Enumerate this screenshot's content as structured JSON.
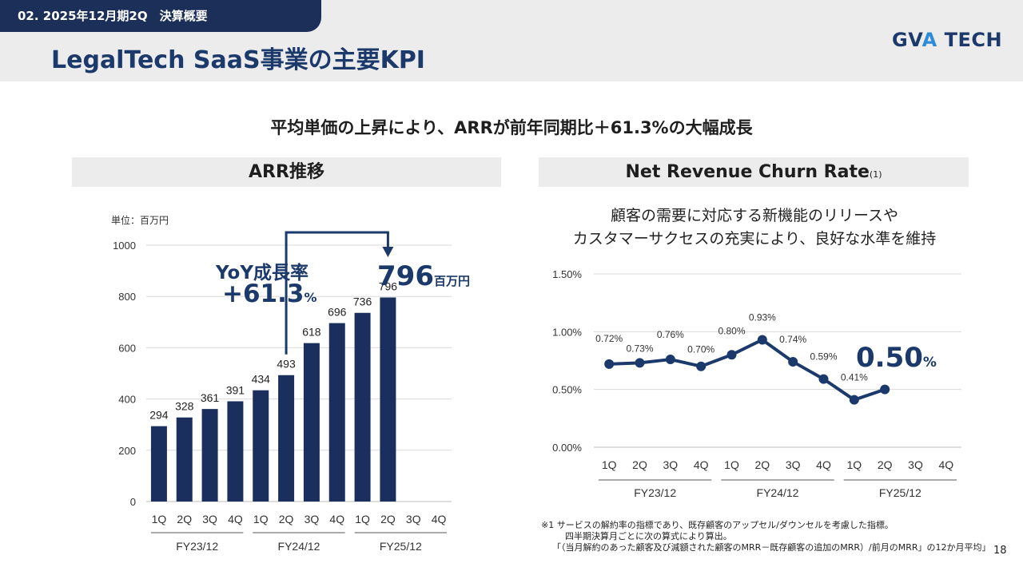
{
  "header": {
    "section": "02. 2025年12月期2Q　決算概要",
    "title": "LegalTech SaaS事業の主要KPI",
    "logo_main": "GV",
    "logo_accent": "A",
    "logo_tail": " TECH"
  },
  "headline": "平均単価の上昇により、ARRが前年同期比＋61.3%の大幅成長",
  "left_panel": {
    "title": "ARR推移",
    "unit": "単位：百万円",
    "yoy_label": "YoY成長率",
    "yoy_value": "+61.3",
    "yoy_unit": "%",
    "latest_value": "796",
    "latest_unit": "百万円"
  },
  "right_panel": {
    "title": "Net Revenue Churn Rate",
    "title_note": "(1)",
    "desc_line1": "顧客の需要に対応する新機能のリリースや",
    "desc_line2": "カスタマーサクセスの充実により、良好な水準を維持",
    "latest_value": "0.50",
    "latest_unit": "%"
  },
  "note": {
    "line1": "※1 サービスの解約率の指標であり、既存顧客のアップセル/ダウンセルを考慮した指標。",
    "line2": "四半期決算月ごとに次の算式により算出。",
    "line3": "「（当月解約のあった顧客及び減額された顧客のMRR－既存顧客の追加のMRR）/前月のMRR」の12か月平均」"
  },
  "page_number": "18",
  "colors": {
    "navy": "#1b3a6b",
    "bar": "#1b2f5e",
    "accent": "#2d8bd8"
  },
  "chart_data": [
    {
      "type": "bar",
      "title": "ARR推移",
      "ylabel": "単位：百万円",
      "ylim": [
        0,
        1000
      ],
      "yticks": [
        0,
        200,
        400,
        600,
        800,
        1000
      ],
      "quarters": [
        "1Q",
        "2Q",
        "3Q",
        "4Q",
        "1Q",
        "2Q",
        "3Q",
        "4Q",
        "1Q",
        "2Q",
        "3Q",
        "4Q"
      ],
      "groups": [
        "FY23/12",
        "FY24/12",
        "FY25/12"
      ],
      "values": [
        294,
        328,
        361,
        391,
        434,
        493,
        618,
        696,
        736,
        796,
        null,
        null
      ],
      "grid": true
    },
    {
      "type": "line",
      "title": "Net Revenue Churn Rate",
      "ylim": [
        0,
        1.5
      ],
      "yticks": [
        "0.00%",
        "0.50%",
        "1.00%",
        "1.50%"
      ],
      "yticks_values": [
        0,
        0.5,
        1.0,
        1.5
      ],
      "quarters": [
        "1Q",
        "2Q",
        "3Q",
        "4Q",
        "1Q",
        "2Q",
        "3Q",
        "4Q",
        "1Q",
        "2Q",
        "3Q",
        "4Q"
      ],
      "groups": [
        "FY23/12",
        "FY24/12",
        "FY25/12"
      ],
      "values": [
        0.72,
        0.73,
        0.76,
        0.7,
        0.8,
        0.93,
        0.74,
        0.59,
        0.41,
        0.5,
        null,
        null
      ],
      "labels": [
        "0.72%",
        "0.73%",
        "0.76%",
        "0.70%",
        "0.80%",
        "0.93%",
        "0.74%",
        "0.59%",
        "0.41%",
        "",
        null,
        null
      ],
      "grid": true
    }
  ]
}
